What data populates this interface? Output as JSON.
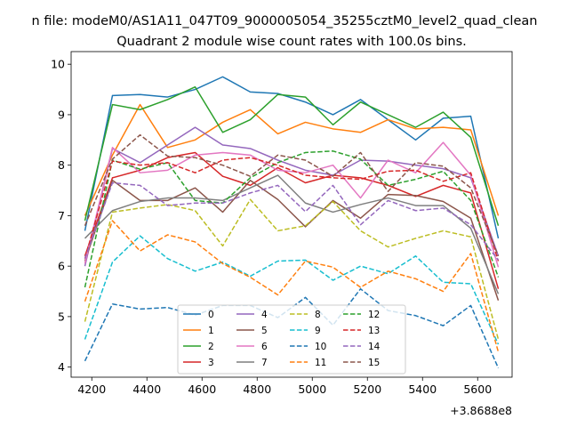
{
  "chart_data": {
    "type": "line",
    "suptitle": "n file: modeM0/AS1A11_047T09_9000005054_35255cztM0_level2_quad_clean",
    "title": "Quadrant 2 module wise count rates with 100.0s bins.",
    "xlabel": "",
    "ylabel": "",
    "offset_label": "+3.8688e8",
    "xlim": [
      4125,
      5725
    ],
    "ylim": [
      3.8,
      10.25
    ],
    "xticks": [
      4200,
      4400,
      4600,
      4800,
      5000,
      5200,
      5400,
      5600
    ],
    "xtick_labels": [
      "4200",
      "4400",
      "4600",
      "4800",
      "5000",
      "5200",
      "5400",
      "5600"
    ],
    "yticks": [
      4,
      5,
      6,
      7,
      8,
      9,
      10
    ],
    "ytick_labels": [
      "4",
      "5",
      "6",
      "7",
      "8",
      "9",
      "10"
    ],
    "x": [
      4175,
      4275,
      4375,
      4475,
      4575,
      4675,
      4775,
      4875,
      4975,
      5075,
      5175,
      5275,
      5375,
      5475,
      5575,
      5675
    ],
    "legend": {
      "location": "lower center",
      "columns": 4
    },
    "series": [
      {
        "name": "0",
        "color": "#1f77b4",
        "dash": false,
        "values": [
          6.7,
          9.38,
          9.4,
          9.35,
          9.5,
          9.75,
          9.45,
          9.42,
          9.25,
          9.0,
          9.3,
          8.9,
          8.5,
          8.93,
          8.97,
          6.55
        ]
      },
      {
        "name": "1",
        "color": "#ff7f0e",
        "dash": false,
        "values": [
          7.0,
          8.2,
          9.2,
          8.35,
          8.5,
          8.85,
          9.1,
          8.62,
          8.85,
          8.72,
          8.65,
          8.9,
          8.72,
          8.75,
          8.7,
          7.0
        ]
      },
      {
        "name": "2",
        "color": "#2ca02c",
        "dash": false,
        "values": [
          6.9,
          9.2,
          9.1,
          9.3,
          9.55,
          8.65,
          8.9,
          9.4,
          9.35,
          8.8,
          9.25,
          9.0,
          8.75,
          9.05,
          8.55,
          6.8
        ]
      },
      {
        "name": "3",
        "color": "#d62728",
        "dash": false,
        "values": [
          6.2,
          7.75,
          7.9,
          8.15,
          8.25,
          7.78,
          7.6,
          7.95,
          7.65,
          7.8,
          7.75,
          7.6,
          7.38,
          7.6,
          7.45,
          5.55
        ]
      },
      {
        "name": "4",
        "color": "#9467bd",
        "dash": false,
        "values": [
          6.0,
          8.33,
          8.05,
          8.4,
          8.75,
          8.4,
          8.33,
          8.1,
          7.9,
          7.8,
          8.1,
          8.08,
          8.0,
          7.93,
          7.75,
          6.2
        ]
      },
      {
        "name": "5",
        "color": "#8c564b",
        "dash": false,
        "values": [
          6.1,
          7.7,
          7.3,
          7.3,
          7.55,
          7.07,
          7.7,
          7.32,
          6.78,
          7.3,
          6.95,
          7.42,
          7.4,
          7.28,
          6.95,
          5.32
        ]
      },
      {
        "name": "6",
        "color": "#e377c2",
        "dash": false,
        "values": [
          6.05,
          8.35,
          7.85,
          7.9,
          8.2,
          8.25,
          8.2,
          7.9,
          7.85,
          8.0,
          7.35,
          8.1,
          7.85,
          8.45,
          7.8,
          5.98
        ]
      },
      {
        "name": "7",
        "color": "#7f7f7f",
        "dash": false,
        "values": [
          6.55,
          7.1,
          7.28,
          7.35,
          7.35,
          7.3,
          7.55,
          7.8,
          7.25,
          7.07,
          7.22,
          7.35,
          7.2,
          7.2,
          6.75,
          5.45
        ]
      },
      {
        "name": "8",
        "color": "#bcbd22",
        "dash": true,
        "values": [
          4.9,
          7.07,
          7.15,
          7.22,
          7.1,
          6.4,
          7.32,
          6.7,
          6.8,
          7.28,
          6.7,
          6.38,
          6.55,
          6.7,
          6.58,
          4.55
        ]
      },
      {
        "name": "9",
        "color": "#17becf",
        "dash": true,
        "values": [
          4.55,
          6.08,
          6.6,
          6.15,
          5.9,
          6.08,
          5.8,
          6.1,
          6.12,
          5.72,
          6.0,
          5.85,
          6.2,
          5.68,
          5.65,
          4.45
        ]
      },
      {
        "name": "10",
        "color": "#1f77b4",
        "dash": true,
        "values": [
          4.12,
          5.25,
          5.15,
          5.18,
          5.03,
          5.22,
          5.22,
          4.98,
          5.38,
          4.83,
          5.55,
          5.12,
          5.02,
          4.82,
          5.22,
          3.98
        ]
      },
      {
        "name": "11",
        "color": "#ff7f0e",
        "dash": true,
        "values": [
          5.3,
          6.9,
          6.3,
          6.62,
          6.48,
          6.05,
          5.78,
          5.43,
          6.1,
          5.98,
          5.58,
          5.9,
          5.75,
          5.5,
          6.25,
          4.3
        ]
      },
      {
        "name": "12",
        "color": "#2ca02c",
        "dash": true,
        "values": [
          5.58,
          8.1,
          7.92,
          8.05,
          7.3,
          7.25,
          7.75,
          8.05,
          8.25,
          8.28,
          8.12,
          7.6,
          7.72,
          7.88,
          7.3,
          5.78
        ]
      },
      {
        "name": "13",
        "color": "#d62728",
        "dash": true,
        "values": [
          6.15,
          8.08,
          8.0,
          8.05,
          7.85,
          8.1,
          8.15,
          8.0,
          7.8,
          7.75,
          7.72,
          7.88,
          7.9,
          7.68,
          7.85,
          6.1
        ]
      },
      {
        "name": "14",
        "color": "#9467bd",
        "dash": true,
        "values": [
          6.15,
          7.65,
          7.6,
          7.2,
          7.25,
          7.25,
          7.45,
          7.6,
          7.08,
          7.6,
          6.82,
          7.3,
          7.1,
          7.15,
          6.82,
          6.12
        ]
      },
      {
        "name": "15",
        "color": "#8c564b",
        "dash": true,
        "values": [
          6.8,
          8.12,
          8.6,
          8.18,
          8.15,
          8.0,
          7.78,
          8.2,
          8.1,
          7.78,
          8.25,
          7.48,
          8.05,
          7.98,
          7.55,
          6.2
        ]
      }
    ]
  }
}
